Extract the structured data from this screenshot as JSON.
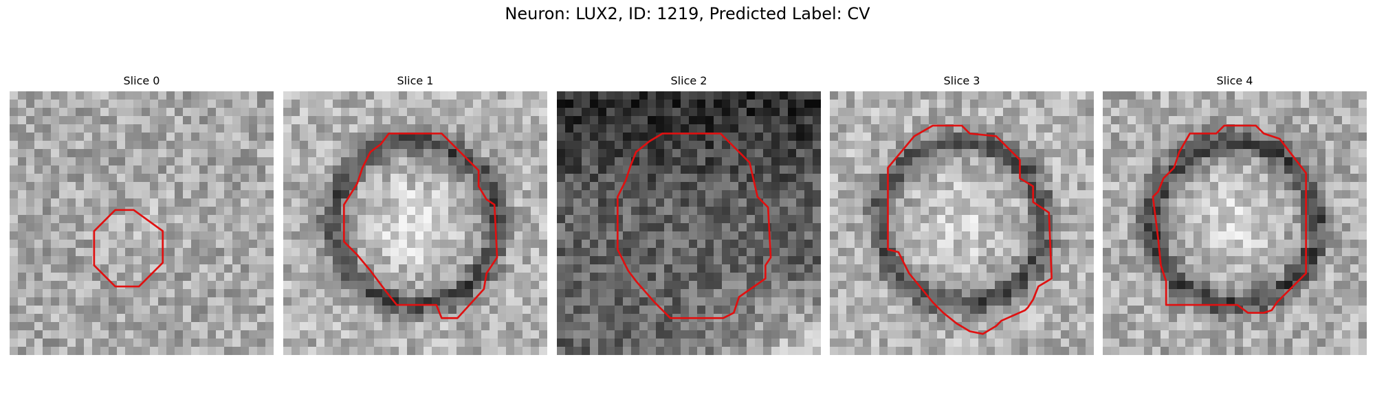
{
  "figure": {
    "title": "Neuron: LUX2, ID: 1219, Predicted Label: CV"
  },
  "contour_color": "#e01010",
  "panels": [
    {
      "title": "Slice 0",
      "seed": 11,
      "brightness": 0.66,
      "center_boost": 0.05,
      "ring_darkness": 0.0,
      "top_darkness": 0.0,
      "bottom_boost": 0.0,
      "contour": [
        [
          0.4,
          0.45
        ],
        [
          0.47,
          0.45
        ],
        [
          0.58,
          0.53
        ],
        [
          0.58,
          0.65
        ],
        [
          0.49,
          0.74
        ],
        [
          0.4,
          0.74
        ],
        [
          0.32,
          0.66
        ],
        [
          0.32,
          0.53
        ]
      ]
    },
    {
      "title": "Slice 1",
      "seed": 23,
      "brightness": 0.7,
      "center_boost": 0.22,
      "ring_darkness": 0.4,
      "top_darkness": 0.0,
      "bottom_boost": 0.0,
      "contour": [
        [
          0.4,
          0.16
        ],
        [
          0.6,
          0.16
        ],
        [
          0.74,
          0.3
        ],
        [
          0.74,
          0.36
        ],
        [
          0.77,
          0.41
        ],
        [
          0.8,
          0.43
        ],
        [
          0.81,
          0.63
        ],
        [
          0.77,
          0.69
        ],
        [
          0.76,
          0.75
        ],
        [
          0.66,
          0.86
        ],
        [
          0.6,
          0.86
        ],
        [
          0.58,
          0.81
        ],
        [
          0.43,
          0.81
        ],
        [
          0.39,
          0.76
        ],
        [
          0.33,
          0.68
        ],
        [
          0.28,
          0.62
        ],
        [
          0.23,
          0.57
        ],
        [
          0.23,
          0.43
        ],
        [
          0.28,
          0.35
        ],
        [
          0.3,
          0.29
        ],
        [
          0.33,
          0.23
        ],
        [
          0.37,
          0.2
        ],
        [
          0.4,
          0.16
        ]
      ]
    },
    {
      "title": "Slice 2",
      "seed": 37,
      "brightness": 0.4,
      "center_boost": 0.0,
      "ring_darkness": 0.0,
      "top_darkness": 0.25,
      "bottom_boost": 0.45,
      "contour": [
        [
          0.4,
          0.16
        ],
        [
          0.62,
          0.16
        ],
        [
          0.73,
          0.27
        ],
        [
          0.76,
          0.4
        ],
        [
          0.8,
          0.44
        ],
        [
          0.81,
          0.63
        ],
        [
          0.79,
          0.66
        ],
        [
          0.79,
          0.71
        ],
        [
          0.69,
          0.78
        ],
        [
          0.67,
          0.84
        ],
        [
          0.63,
          0.86
        ],
        [
          0.43,
          0.86
        ],
        [
          0.37,
          0.8
        ],
        [
          0.3,
          0.72
        ],
        [
          0.27,
          0.68
        ],
        [
          0.23,
          0.6
        ],
        [
          0.23,
          0.4
        ],
        [
          0.26,
          0.34
        ],
        [
          0.28,
          0.28
        ],
        [
          0.3,
          0.23
        ],
        [
          0.35,
          0.19
        ],
        [
          0.4,
          0.16
        ]
      ]
    },
    {
      "title": "Slice 3",
      "seed": 53,
      "brightness": 0.7,
      "center_boost": 0.14,
      "ring_darkness": 0.38,
      "top_darkness": 0.0,
      "bottom_boost": 0.0,
      "contour": [
        [
          0.39,
          0.13
        ],
        [
          0.5,
          0.13
        ],
        [
          0.53,
          0.16
        ],
        [
          0.63,
          0.17
        ],
        [
          0.72,
          0.26
        ],
        [
          0.72,
          0.33
        ],
        [
          0.77,
          0.36
        ],
        [
          0.77,
          0.42
        ],
        [
          0.83,
          0.46
        ],
        [
          0.84,
          0.7
        ],
        [
          0.84,
          0.71
        ],
        [
          0.79,
          0.74
        ],
        [
          0.77,
          0.79
        ],
        [
          0.75,
          0.82
        ],
        [
          0.74,
          0.83
        ],
        [
          0.65,
          0.87
        ],
        [
          0.63,
          0.89
        ],
        [
          0.58,
          0.92
        ],
        [
          0.53,
          0.91
        ],
        [
          0.48,
          0.88
        ],
        [
          0.43,
          0.84
        ],
        [
          0.39,
          0.8
        ],
        [
          0.3,
          0.69
        ],
        [
          0.26,
          0.61
        ],
        [
          0.22,
          0.6
        ],
        [
          0.22,
          0.29
        ],
        [
          0.32,
          0.17
        ],
        [
          0.39,
          0.13
        ]
      ]
    },
    {
      "title": "Slice 4",
      "seed": 71,
      "brightness": 0.68,
      "center_boost": 0.2,
      "ring_darkness": 0.4,
      "top_darkness": 0.0,
      "bottom_boost": 0.0,
      "contour": [
        [
          0.33,
          0.16
        ],
        [
          0.43,
          0.16
        ],
        [
          0.46,
          0.13
        ],
        [
          0.58,
          0.13
        ],
        [
          0.61,
          0.16
        ],
        [
          0.67,
          0.18
        ],
        [
          0.77,
          0.31
        ],
        [
          0.77,
          0.69
        ],
        [
          0.66,
          0.8
        ],
        [
          0.64,
          0.83
        ],
        [
          0.61,
          0.84
        ],
        [
          0.55,
          0.84
        ],
        [
          0.51,
          0.81
        ],
        [
          0.24,
          0.81
        ],
        [
          0.24,
          0.72
        ],
        [
          0.22,
          0.66
        ],
        [
          0.21,
          0.56
        ],
        [
          0.19,
          0.4
        ],
        [
          0.21,
          0.38
        ],
        [
          0.23,
          0.33
        ],
        [
          0.27,
          0.29
        ],
        [
          0.29,
          0.23
        ],
        [
          0.33,
          0.16
        ]
      ]
    }
  ]
}
